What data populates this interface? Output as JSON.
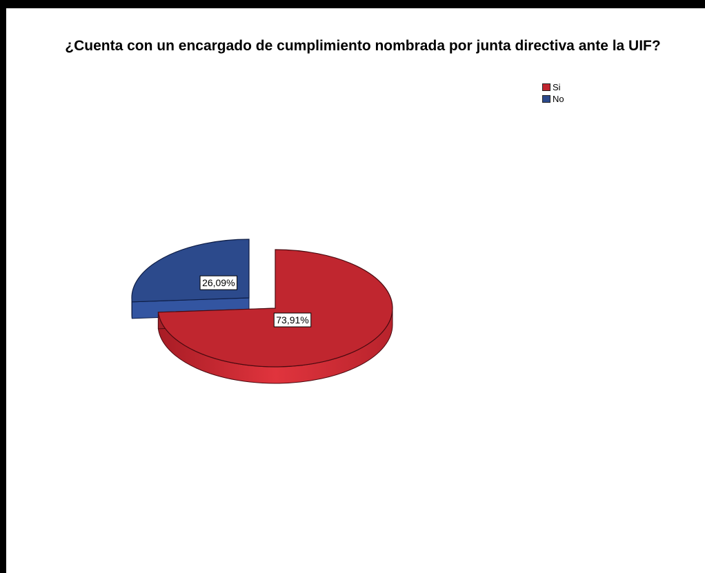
{
  "chart_data": {
    "type": "pie",
    "title": "¿Cuenta con un encargado de cumplimiento nombrada por junta directiva ante la UIF?",
    "legend_placement": "top-right",
    "slices": [
      {
        "name": "Si",
        "value": 73.91,
        "label": "73,91%",
        "color": "#c0262f",
        "exploded": false
      },
      {
        "name": "No",
        "value": 26.09,
        "label": "26,09%",
        "color": "#2c4a8c",
        "exploded": true
      }
    ]
  }
}
